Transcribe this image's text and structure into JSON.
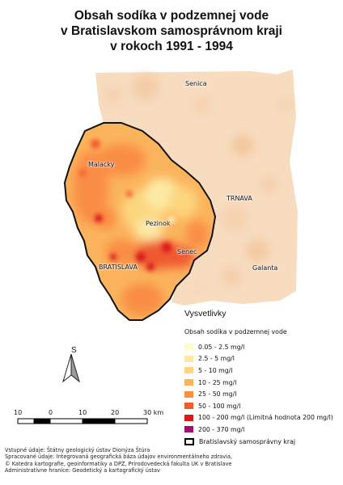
{
  "title": {
    "line1": "Obsah sodíka v podzemnej vode",
    "line2": "v Bratislavskom samosprávnom kraji",
    "line3": "v rokoch 1991 - 1994"
  },
  "places": {
    "senica": "Senica",
    "malacky": "Malacky",
    "trnava": "TRNAVA",
    "pezinok": "Pezinok",
    "senec": "Senec",
    "bratislava": "BRATISLAVA",
    "galanta": "Galanta"
  },
  "legend": {
    "title": "Vysvetlivky",
    "subtitle": "Obsah sodíka v podzemnej vode",
    "items": [
      {
        "label": "0.05 - 2.5 mg/l",
        "color": "#fefbd0"
      },
      {
        "label": "2.5 - 5 mg/l",
        "color": "#fde9a6"
      },
      {
        "label": "5 - 10 mg/l",
        "color": "#fcd57e"
      },
      {
        "label": "10 - 25 mg/l",
        "color": "#fbb45c"
      },
      {
        "label": "25 - 50 mg/l",
        "color": "#f98d44"
      },
      {
        "label": "50 - 100 mg/l",
        "color": "#ef5a33"
      },
      {
        "label": "100 - 200 mg/l (Limitná hodnota 200 mg/l)",
        "color": "#d7191c"
      },
      {
        "label": "200 - 370 mg/l",
        "color": "#a0106a"
      }
    ],
    "boundary_label": "Bratislavský samosprávny kraj"
  },
  "north_arrow": "S",
  "scale_bar": {
    "labels": [
      "10",
      "0",
      "10",
      "20",
      "30 km"
    ]
  },
  "credits": [
    "Vstupné údaje: Štátny geologický ústav Dionýza Štúra",
    "Spracované údaje: Integrovaná geografická báza údajov environmentálneho zdravia,",
    "© Katedra kartografie, geoinformatiky a DPZ, Prírodovedecká fakulta UK v Bratislave",
    "Administratívne hranice: Geodetický a kartografický ústav"
  ]
}
